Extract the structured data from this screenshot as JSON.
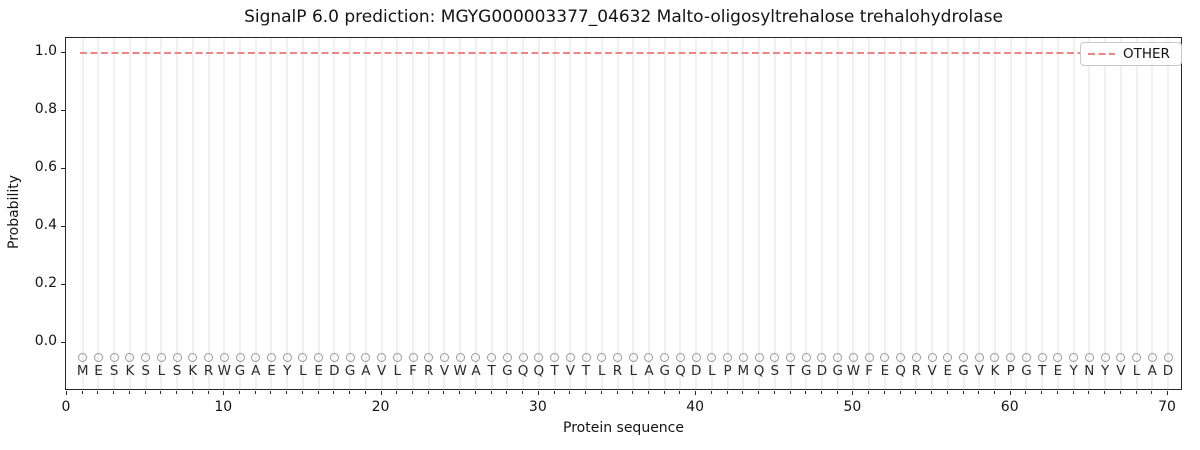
{
  "chart_data": {
    "type": "line",
    "title": "SignalP 6.0 prediction: MGYG000003377_04632 Malto-oligosyltrehalose trehalohydrolase",
    "xlabel": "Protein sequence",
    "ylabel": "Probability",
    "xlim": [
      -0.15,
      70.85
    ],
    "ylim": [
      -0.159,
      1.052
    ],
    "x_ticks": [
      0,
      10,
      20,
      30,
      40,
      50,
      60,
      70
    ],
    "y_ticks": [
      0.0,
      0.2,
      0.4,
      0.6,
      0.8,
      1.0
    ],
    "grid": "vertical gridline at every residue position 1-70",
    "series": [
      {
        "name": "OTHER",
        "color": "#ec8585",
        "linestyle": "dashed",
        "x_start": 1,
        "x_end": 70,
        "y_constant": 1.0
      }
    ],
    "legend": {
      "position": "upper right",
      "entries": [
        "OTHER"
      ]
    },
    "sequence": "MESKSLSKRWGAEYLEDGAVLFRVWATGQQTVTLRLAGQDLPMQSTGDGWFEQRVEGVKPGTEYNYVLAD",
    "sequence_letter_y": -0.095,
    "sequence_marker": {
      "shape": "open-circle",
      "y": -0.05,
      "color": "#9a9a9a"
    }
  },
  "colors": {
    "grid": "#f0f0f0",
    "spine": "#262626",
    "text": "#141414",
    "letters": "#2b2b2b",
    "other_line": "#ec8585"
  }
}
